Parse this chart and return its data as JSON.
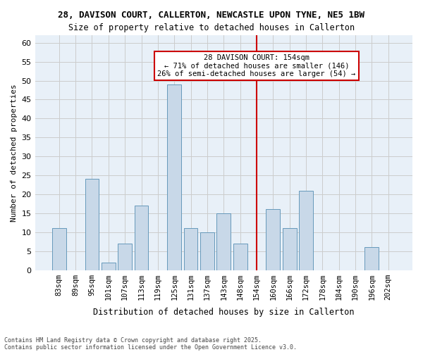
{
  "title1": "28, DAVISON COURT, CALLERTON, NEWCASTLE UPON TYNE, NE5 1BW",
  "title2": "Size of property relative to detached houses in Callerton",
  "xlabel": "Distribution of detached houses by size in Callerton",
  "ylabel": "Number of detached properties",
  "categories": [
    "83sqm",
    "89sqm",
    "95sqm",
    "101sqm",
    "107sqm",
    "113sqm",
    "119sqm",
    "125sqm",
    "131sqm",
    "137sqm",
    "143sqm",
    "148sqm",
    "154sqm",
    "160sqm",
    "166sqm",
    "172sqm",
    "178sqm",
    "184sqm",
    "190sqm",
    "196sqm",
    "202sqm"
  ],
  "values": [
    11,
    0,
    24,
    2,
    7,
    17,
    0,
    49,
    11,
    10,
    15,
    7,
    0,
    16,
    11,
    21,
    0,
    0,
    0,
    6,
    0
  ],
  "bar_color": "#c8d8e8",
  "bar_edge_color": "#6699bb",
  "grid_color": "#cccccc",
  "bg_color": "#e8f0f8",
  "vline_x": 12,
  "vline_color": "#cc0000",
  "annotation_text": "28 DAVISON COURT: 154sqm\n← 71% of detached houses are smaller (146)\n26% of semi-detached houses are larger (54) →",
  "annotation_box_color": "#cc0000",
  "footer1": "Contains HM Land Registry data © Crown copyright and database right 2025.",
  "footer2": "Contains public sector information licensed under the Open Government Licence v3.0.",
  "ylim": [
    0,
    62
  ],
  "yticks": [
    0,
    5,
    10,
    15,
    20,
    25,
    30,
    35,
    40,
    45,
    50,
    55,
    60
  ]
}
